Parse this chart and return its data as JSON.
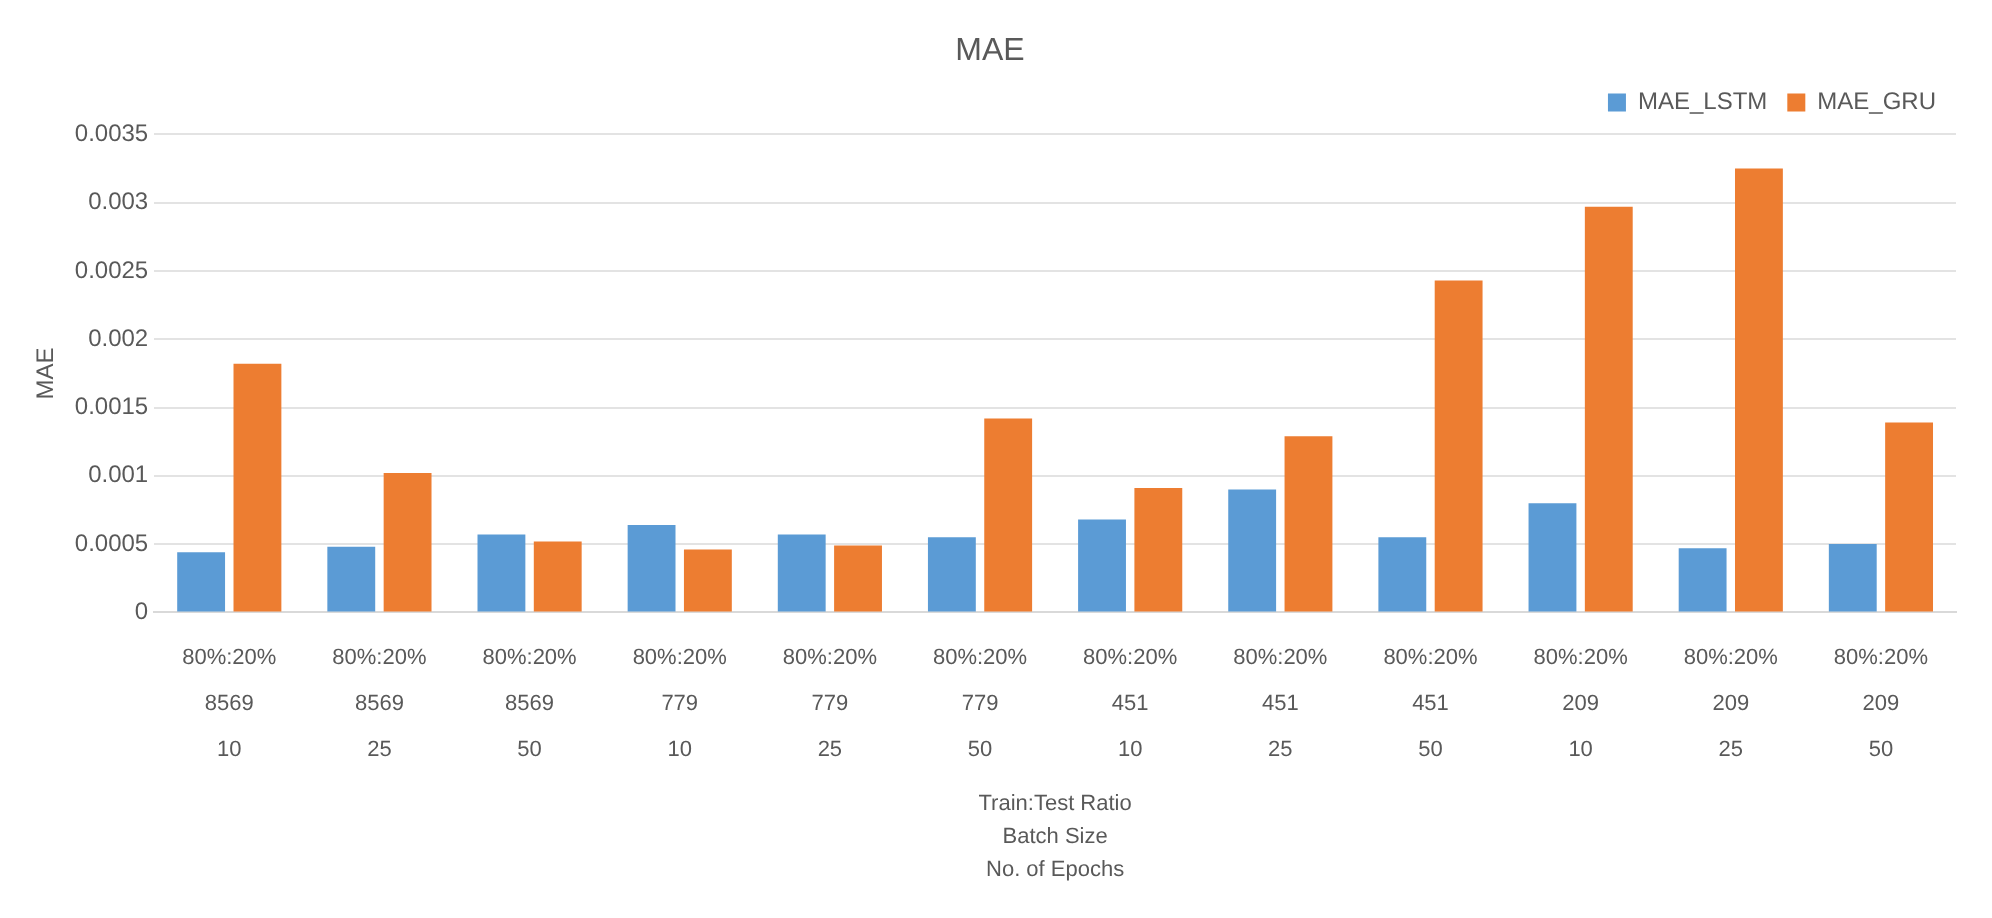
{
  "chart_data": {
    "type": "bar",
    "title": "MAE",
    "xlabel": "Train:Test Ratio\nBatch Size\nNo. of Epochs",
    "ylabel": "MAE",
    "categories": [
      "80%:20%\n8569\n10",
      "80%:20%\n8569\n25",
      "80%:20%\n8569\n50",
      "80%:20%\n779\n10",
      "80%:20%\n779\n25",
      "80%:20%\n779\n50",
      "80%:20%\n451\n10",
      "80%:20%\n451\n25",
      "80%:20%\n451\n50",
      "80%:20%\n209\n10",
      "80%:20%\n209\n25",
      "80%:20%\n209\n50"
    ],
    "series": [
      {
        "name": "MAE_LSTM",
        "color": "#5b9bd5",
        "values": [
          0.00044,
          0.00048,
          0.00057,
          0.00064,
          0.00057,
          0.00055,
          0.00068,
          0.0009,
          0.00055,
          0.0008,
          0.00047,
          0.0005
        ]
      },
      {
        "name": "MAE_GRU",
        "color": "#ed7d31",
        "values": [
          0.00182,
          0.00102,
          0.00052,
          0.00046,
          0.00049,
          0.00142,
          0.00091,
          0.00129,
          0.00243,
          0.00297,
          0.00325,
          0.00139
        ]
      }
    ],
    "ylim": [
      0,
      0.0035
    ],
    "yticks": [
      0,
      0.0005,
      0.001,
      0.0015,
      0.002,
      0.0025,
      0.003,
      0.0035
    ],
    "grid": "y",
    "legend": "top right"
  }
}
